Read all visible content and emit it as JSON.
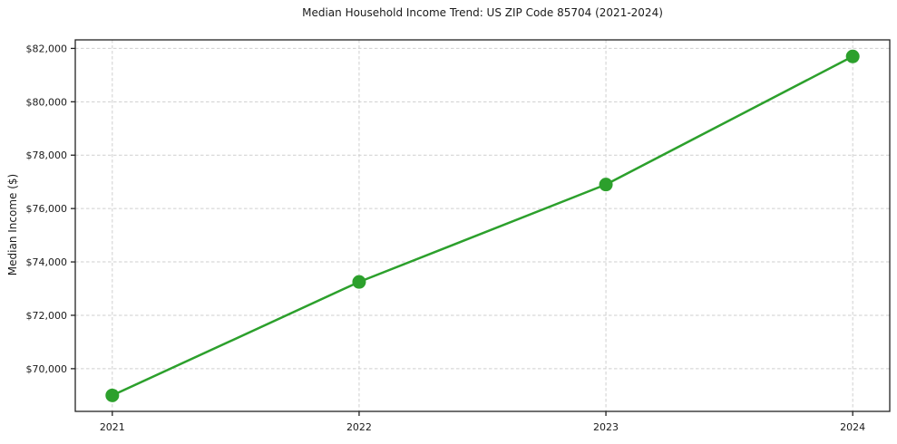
{
  "chart_data": {
    "type": "line",
    "title": "Median Household Income Trend: US ZIP Code 85704 (2021-2024)",
    "ylabel": "Median Income ($)",
    "xlabel": "",
    "categories": [
      "2021",
      "2022",
      "2023",
      "2024"
    ],
    "values": [
      69000,
      73250,
      76900,
      81700
    ],
    "y_ticks": [
      {
        "value": 70000,
        "label": "$70,000"
      },
      {
        "value": 72000,
        "label": "$72,000"
      },
      {
        "value": 74000,
        "label": "$74,000"
      },
      {
        "value": 76000,
        "label": "$76,000"
      },
      {
        "value": 78000,
        "label": "$78,000"
      },
      {
        "value": 80000,
        "label": "$80,000"
      },
      {
        "value": 82000,
        "label": "$82,000"
      }
    ],
    "ylim": [
      68400,
      82320
    ],
    "grid": "dashed-both-axes",
    "legend_position": "none",
    "marker": "circle",
    "styles": {
      "line_color": "#2ca02c",
      "grid_color": "#cfcfcf",
      "axis_color": "#222222",
      "text_color": "#1a1a1a",
      "background": "#ffffff"
    }
  }
}
